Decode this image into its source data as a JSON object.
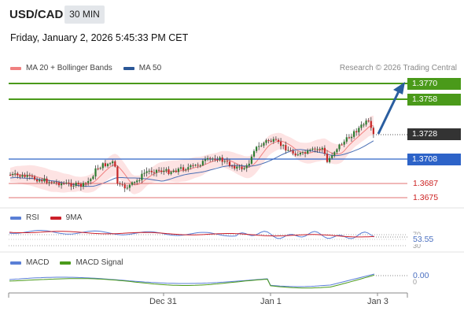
{
  "header": {
    "symbol": "USD/CAD",
    "timeframe": "30 MIN",
    "datetime": "Friday, January 2, 2026 5:45:33 PM CET"
  },
  "legend": {
    "ma20_label": "MA 20 + Bollinger Bands",
    "ma50_label": "MA 50",
    "credit": "Research © 2026 Trading Central"
  },
  "levels": {
    "r2": "1.3770",
    "r1": "1.3758",
    "last": "1.3728",
    "pivot": "1.3708",
    "s1": "1.3687",
    "s2": "1.3675"
  },
  "rsi": {
    "label": "RSI",
    "ma_label": "9MA",
    "value": "53.55",
    "ticks": [
      "70",
      "30"
    ]
  },
  "macd": {
    "label": "MACD",
    "signal_label": "MACD Signal",
    "value": "0.00",
    "zero": "0"
  },
  "xaxis": {
    "ticks": [
      "Dec 31",
      "Jan 1",
      "Jan 3"
    ]
  },
  "colors": {
    "green": "#4a9a1a",
    "blue": "#2d63c8",
    "red_line": "#e07070",
    "dark_label": "#333333",
    "arrow": "#2a5ea0",
    "ma20": "#f08080",
    "ma50": "#2b5797",
    "rsi": "#5a7fd6",
    "rsi_ma": "#cc1f2a",
    "macd": "#5a7fd6",
    "signal": "#4a9a1a"
  }
}
